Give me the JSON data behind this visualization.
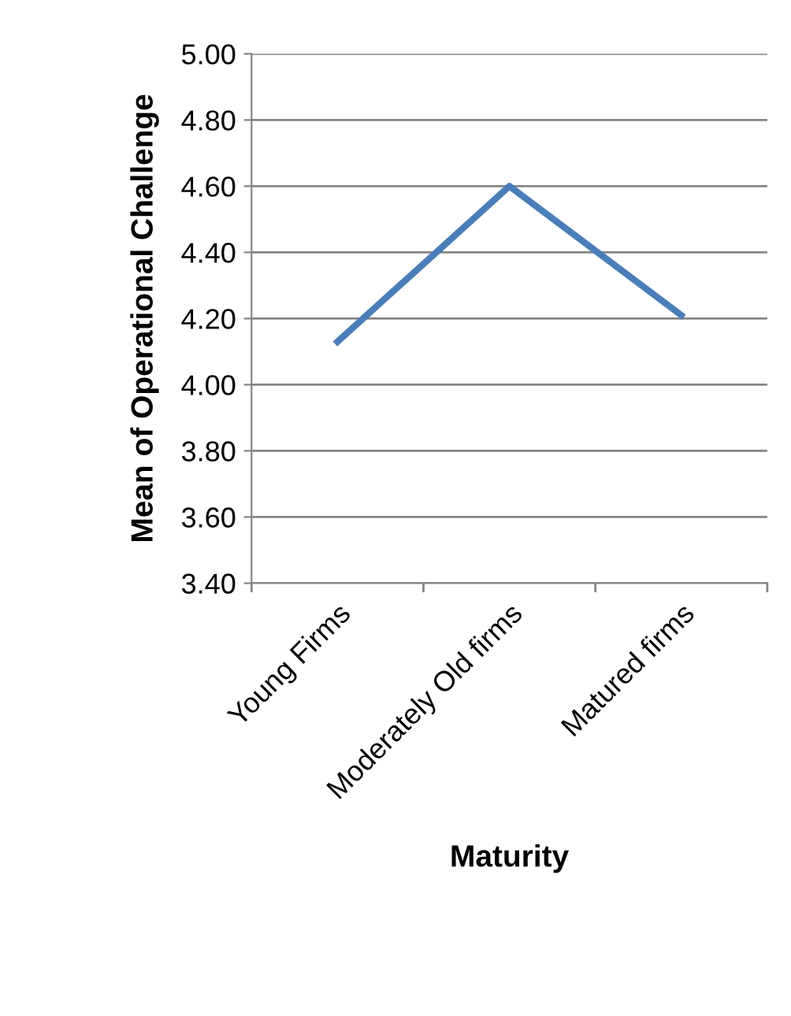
{
  "chart_data": {
    "type": "line",
    "xlabel": "Maturity",
    "ylabel": "Mean of Operational Challenge",
    "categories": [
      "Young Firms",
      "Moderately Old firms",
      "Matured firms"
    ],
    "series": [
      {
        "color": "#4a7ebb",
        "values": [
          4.13,
          4.6,
          4.21
        ]
      }
    ],
    "ylim": [
      3.4,
      5.0
    ],
    "yticks": [
      {
        "value": 3.4,
        "label": "3.40"
      },
      {
        "value": 3.6,
        "label": "3.60"
      },
      {
        "value": 3.8,
        "label": "3.80"
      },
      {
        "value": 4.0,
        "label": "4.00"
      },
      {
        "value": 4.2,
        "label": "4.20"
      },
      {
        "value": 4.4,
        "label": "4.40"
      },
      {
        "value": 4.6,
        "label": "4.60"
      },
      {
        "value": 4.8,
        "label": "4.80"
      },
      {
        "value": 5.0,
        "label": "5.00"
      }
    ],
    "grid": "y",
    "marker": "none",
    "line_style": "solid",
    "legend": false
  }
}
